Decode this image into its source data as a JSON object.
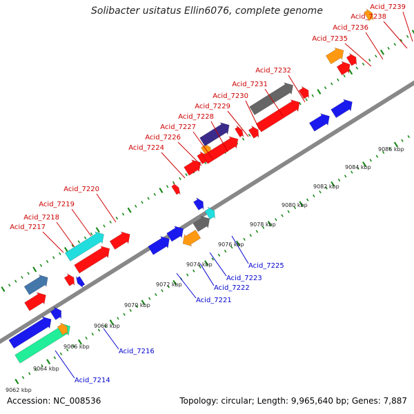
{
  "title": "Solibacter usitatus Ellin6076, complete genome",
  "footer": {
    "accession": "Accession: NC_008536",
    "summary": "Topology: circular; Length: 9,965,640 bp; Genes: 7,887"
  },
  "colors": {
    "background": "#ffffff",
    "backbone": "#888888",
    "tick": "#1a8a1a",
    "forward_label": "#cc0000",
    "reverse_label": "#0000cc",
    "scale_label": "#222222",
    "gene_red": "#ff1111",
    "gene_blue": "#1a1aee",
    "gene_cyan": "#22dddd",
    "gene_orange": "#ff9911",
    "gene_gray": "#666666",
    "gene_indigo": "#3a2a8a",
    "gene_steel": "#4477aa",
    "gene_mint": "#22ee99"
  },
  "scale_labels": [
    "9062 kbp",
    "9064 kbp",
    "9066 kbp",
    "9068 kbp",
    "9070 kbp",
    "9072 kbp",
    "9074 kbp",
    "9076 kbp",
    "9078 kbp",
    "9080 kbp",
    "9082 kbp",
    "9084 kbp",
    "9086 kbp"
  ],
  "gene_labels_forward": [
    "Acid_7217",
    "Acid_7218",
    "Acid_7219",
    "Acid_7220",
    "Acid_7224",
    "Acid_7226",
    "Acid_7227",
    "Acid_7228",
    "Acid_7229",
    "Acid_7230",
    "Acid_7231",
    "Acid_7232",
    "Acid_7235",
    "Acid_7236",
    "Acid_7238",
    "Acid_7239"
  ],
  "gene_labels_reverse": [
    "Acid_7214",
    "Acid_7216",
    "Acid_7221",
    "Acid_7222",
    "Acid_7223",
    "Acid_7225"
  ]
}
